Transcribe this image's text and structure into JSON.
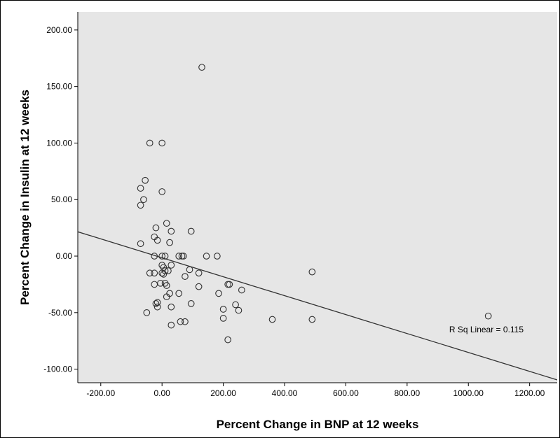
{
  "chart_data": {
    "type": "scatter",
    "xlabel": "Percent Change in BNP at 12 weeks",
    "ylabel": "Percent Change in Insulin at 12 weeks",
    "xlim": [
      -275,
      1290
    ],
    "ylim": [
      -112,
      216
    ],
    "x_ticks": [
      -200,
      0,
      200,
      400,
      600,
      800,
      1000,
      1200
    ],
    "x_tick_labels": [
      "-200.00",
      "0.00",
      "200.00",
      "400.00",
      "600.00",
      "800.00",
      "1000.00",
      "1200.00"
    ],
    "y_ticks": [
      200,
      150,
      100,
      50,
      0,
      -50,
      -100
    ],
    "y_tick_labels": [
      "200.00",
      "150.00",
      "100.00",
      "50.00",
      "0.00",
      "-50.00",
      "-100.00"
    ],
    "grid": false,
    "background": "#e6e6e6",
    "marker_color": "#303030",
    "line_color": "#333333",
    "fit_line": {
      "x": [
        -275,
        1290
      ],
      "y": [
        21.5,
        -109.5
      ]
    },
    "annotation": "R Sq Linear = 0.115",
    "annotation_pos": {
      "x": 1070,
      "y": -65
    },
    "points": [
      {
        "x": 130,
        "y": 167
      },
      {
        "x": -40,
        "y": 100
      },
      {
        "x": 0,
        "y": 100
      },
      {
        "x": -55,
        "y": 67
      },
      {
        "x": -70,
        "y": 60
      },
      {
        "x": 0,
        "y": 57
      },
      {
        "x": -60,
        "y": 50
      },
      {
        "x": -70,
        "y": 45
      },
      {
        "x": 15,
        "y": 29
      },
      {
        "x": -20,
        "y": 25
      },
      {
        "x": 30,
        "y": 22
      },
      {
        "x": 95,
        "y": 22
      },
      {
        "x": -25,
        "y": 17
      },
      {
        "x": -15,
        "y": 14
      },
      {
        "x": 25,
        "y": 12
      },
      {
        "x": -70,
        "y": 11
      },
      {
        "x": -25,
        "y": 0
      },
      {
        "x": 0,
        "y": 0
      },
      {
        "x": 10,
        "y": 0
      },
      {
        "x": 55,
        "y": 0
      },
      {
        "x": 65,
        "y": 0
      },
      {
        "x": 70,
        "y": 0
      },
      {
        "x": 145,
        "y": 0
      },
      {
        "x": 180,
        "y": 0
      },
      {
        "x": 0,
        "y": -8
      },
      {
        "x": 5,
        "y": -10
      },
      {
        "x": 30,
        "y": -8
      },
      {
        "x": 90,
        "y": -12
      },
      {
        "x": 10,
        "y": -13
      },
      {
        "x": 20,
        "y": -13
      },
      {
        "x": 0,
        "y": -15
      },
      {
        "x": 5,
        "y": -16
      },
      {
        "x": -40,
        "y": -15
      },
      {
        "x": -25,
        "y": -15
      },
      {
        "x": 120,
        "y": -15
      },
      {
        "x": 75,
        "y": -18
      },
      {
        "x": -5,
        "y": -24
      },
      {
        "x": 10,
        "y": -24
      },
      {
        "x": -25,
        "y": -25
      },
      {
        "x": 15,
        "y": -26
      },
      {
        "x": 215,
        "y": -25
      },
      {
        "x": 220,
        "y": -25
      },
      {
        "x": 120,
        "y": -27
      },
      {
        "x": 260,
        "y": -30
      },
      {
        "x": 25,
        "y": -33
      },
      {
        "x": 55,
        "y": -33
      },
      {
        "x": 185,
        "y": -33
      },
      {
        "x": 15,
        "y": -36
      },
      {
        "x": -15,
        "y": -41
      },
      {
        "x": -20,
        "y": -42
      },
      {
        "x": 95,
        "y": -42
      },
      {
        "x": 240,
        "y": -43
      },
      {
        "x": -15,
        "y": -45
      },
      {
        "x": 30,
        "y": -45
      },
      {
        "x": 200,
        "y": -47
      },
      {
        "x": 250,
        "y": -48
      },
      {
        "x": -50,
        "y": -50
      },
      {
        "x": 200,
        "y": -55
      },
      {
        "x": 360,
        "y": -56
      },
      {
        "x": 490,
        "y": -56
      },
      {
        "x": 60,
        "y": -58
      },
      {
        "x": 75,
        "y": -58
      },
      {
        "x": 30,
        "y": -61
      },
      {
        "x": 215,
        "y": -74
      },
      {
        "x": 490,
        "y": -14
      },
      {
        "x": 1065,
        "y": -53
      }
    ]
  }
}
